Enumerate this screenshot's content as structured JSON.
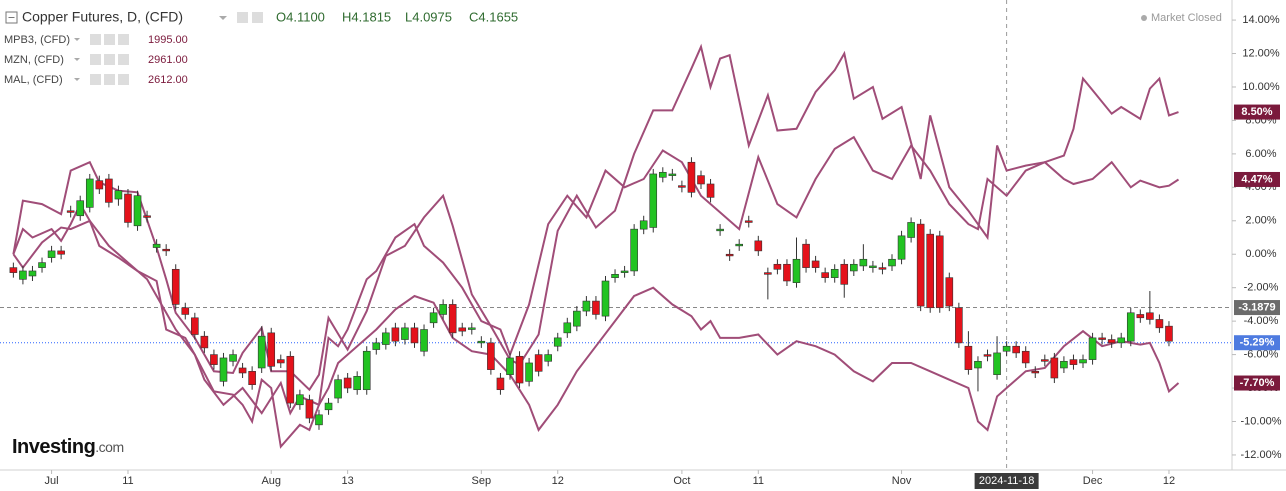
{
  "chart_data": {
    "type": "candlestick",
    "title": "Copper Futures, D, (CFD)",
    "ohlc": [
      "O4.1100",
      "H4.1815",
      "L4.0975",
      "C4.1655"
    ],
    "status": "Market Closed",
    "brand": [
      "Investing",
      ".com"
    ],
    "up_color": "#22c322",
    "down_color": "#e4121b",
    "x": [
      0,
      1,
      2,
      3,
      4,
      5,
      6,
      7,
      8,
      9,
      10,
      11,
      12,
      13,
      14,
      15,
      16,
      17,
      18,
      19,
      20,
      21,
      22,
      23,
      24,
      25,
      26,
      27,
      28,
      29,
      30,
      31,
      32,
      33,
      34,
      35,
      36,
      37,
      38,
      39,
      40,
      41,
      42,
      43,
      44,
      45,
      46,
      47,
      48,
      49,
      50,
      51,
      52,
      53,
      54,
      55,
      56,
      57,
      58,
      59,
      60,
      61,
      62,
      63,
      64,
      65,
      66,
      67,
      68,
      69,
      70,
      71,
      72,
      73,
      74,
      75,
      76,
      77,
      78,
      79,
      80,
      81,
      82,
      83,
      84,
      85,
      86,
      87,
      88,
      89,
      90,
      91,
      92,
      93,
      94,
      95,
      96,
      97,
      98,
      99,
      100,
      101,
      102,
      103,
      104,
      105,
      106,
      107,
      108,
      109,
      110,
      111,
      112,
      113,
      114,
      115,
      116,
      117,
      118,
      119,
      120,
      121
    ],
    "open": [
      -0.8,
      -1.5,
      -1.3,
      -0.8,
      -0.2,
      0.2,
      2.6,
      2.3,
      2.8,
      4.4,
      4.5,
      3.3,
      3.6,
      1.7,
      2.3,
      0.4,
      0.3,
      -0.9,
      -3.2,
      -3.8,
      -4.9,
      -6.0,
      -7.6,
      -6.4,
      -6.8,
      -7.0,
      -6.8,
      -4.7,
      -6.3,
      -6.1,
      -9.0,
      -8.7,
      -10.2,
      -9.3,
      -8.6,
      -7.4,
      -8.1,
      -8.1,
      -5.7,
      -5.4,
      -4.4,
      -5.1,
      -4.4,
      -5.8,
      -4.1,
      -3.6,
      -3.0,
      -4.4,
      -4.5,
      -5.3,
      -5.3,
      -7.4,
      -7.2,
      -6.1,
      -7.6,
      -6.0,
      -6.4,
      -5.5,
      -4.7,
      -4.3,
      -3.4,
      -2.8,
      -3.7,
      -1.4,
      -1.1,
      -1.0,
      1.5,
      1.6,
      4.6,
      4.7,
      4.1,
      5.5,
      4.7,
      4.2,
      1.4,
      0.0,
      0.5,
      2.0,
      0.8,
      -1.1,
      -0.6,
      -0.6,
      -1.7,
      0.6,
      -0.4,
      -1.1,
      -1.4,
      -0.6,
      -1.0,
      -0.7,
      -0.8,
      -0.8,
      -0.7,
      -0.3,
      1.0,
      1.8,
      1.2,
      1.1,
      -1.4,
      -3.2,
      -5.5,
      -6.8,
      -6.0,
      -7.2,
      -5.8,
      -5.5,
      -5.8,
      -7.0,
      -6.3,
      -6.2,
      -6.8,
      -6.3,
      -6.5,
      -6.3,
      -5.0,
      -5.1,
      -5.3,
      -5.2,
      -3.6,
      -3.5,
      -3.9,
      -4.3
    ],
    "high": [
      -0.5,
      -0.7,
      -0.7,
      -0.2,
      0.5,
      0.5,
      2.9,
      3.5,
      4.8,
      4.7,
      4.8,
      4.1,
      3.9,
      3.8,
      2.6,
      0.9,
      0.6,
      -0.6,
      -2.9,
      -3.5,
      -4.6,
      -5.7,
      -5.9,
      -5.7,
      -6.5,
      -6.7,
      -4.3,
      -4.4,
      -6.0,
      -5.8,
      -8.1,
      -8.4,
      -9.3,
      -8.6,
      -7.2,
      -7.1,
      -7.0,
      -5.5,
      -5.0,
      -4.4,
      -4.1,
      -4.1,
      -4.1,
      -4.2,
      -3.2,
      -2.7,
      -2.7,
      -4.1,
      -4.1,
      -4.9,
      -5.0,
      -7.1,
      -5.9,
      -5.8,
      -6.2,
      -5.7,
      -5.7,
      -4.7,
      -3.8,
      -3.1,
      -2.5,
      -2.5,
      -1.3,
      -0.9,
      -0.7,
      1.8,
      2.3,
      5.1,
      5.2,
      5.1,
      4.4,
      5.8,
      5.0,
      4.5,
      1.8,
      0.3,
      0.9,
      2.3,
      1.1,
      -0.8,
      -0.3,
      -0.3,
      1.0,
      0.9,
      -0.1,
      -0.8,
      -0.6,
      -0.3,
      -0.3,
      0.6,
      -0.4,
      -0.5,
      0.0,
      1.4,
      2.2,
      2.1,
      1.5,
      1.4,
      -1.1,
      -2.9,
      -4.6,
      -6.1,
      -5.7,
      -4.9,
      -5.2,
      -5.2,
      -5.5,
      -6.7,
      -6.0,
      -5.9,
      -6.1,
      -6.0,
      -6.0,
      -4.7,
      -4.7,
      -4.8,
      -4.7,
      -3.2,
      -3.3,
      -2.2,
      -3.6,
      -4.0
    ],
    "low": [
      -1.4,
      -1.8,
      -1.6,
      -1.1,
      -0.5,
      -0.3,
      2.2,
      2.0,
      2.5,
      3.6,
      2.8,
      2.9,
      1.6,
      1.4,
      1.9,
      0.1,
      -0.1,
      -3.3,
      -3.9,
      -5.1,
      -5.9,
      -6.9,
      -7.9,
      -6.7,
      -7.4,
      -8.1,
      -7.1,
      -7.0,
      -6.8,
      -9.2,
      -9.3,
      -10.1,
      -10.5,
      -9.6,
      -8.9,
      -8.3,
      -8.4,
      -8.4,
      -6.0,
      -5.7,
      -5.5,
      -5.4,
      -5.6,
      -6.1,
      -4.4,
      -3.9,
      -5.0,
      -4.9,
      -4.8,
      -5.6,
      -7.2,
      -8.4,
      -7.5,
      -8.0,
      -7.9,
      -7.3,
      -6.7,
      -5.8,
      -5.0,
      -4.6,
      -3.7,
      -3.9,
      -4.0,
      -1.7,
      -1.4,
      -1.3,
      1.2,
      1.3,
      4.3,
      4.4,
      3.7,
      3.4,
      3.9,
      3.1,
      1.1,
      -0.4,
      0.2,
      1.6,
      -0.1,
      -2.7,
      -1.2,
      -1.9,
      -2.0,
      -1.1,
      -1.1,
      -1.7,
      -1.7,
      -2.6,
      -1.3,
      -1.0,
      -1.1,
      -1.2,
      -1.0,
      -0.6,
      0.7,
      -3.4,
      -3.5,
      -3.5,
      -3.4,
      -5.6,
      -7.2,
      -8.2,
      -6.4,
      -7.5,
      -6.1,
      -6.2,
      -6.8,
      -7.4,
      -6.7,
      -7.7,
      -7.1,
      -6.9,
      -6.8,
      -6.6,
      -5.4,
      -5.6,
      -5.6,
      -5.5,
      -4.1,
      -4.2,
      -4.7,
      -5.5
    ],
    "close": [
      -1.1,
      -1.0,
      -1.0,
      -0.5,
      0.2,
      0.0,
      2.5,
      3.2,
      4.5,
      3.9,
      3.1,
      3.8,
      1.9,
      3.5,
      2.2,
      0.6,
      0.2,
      -3.0,
      -3.6,
      -4.8,
      -5.6,
      -6.6,
      -6.2,
      -6.0,
      -7.1,
      -7.8,
      -4.9,
      -6.7,
      -6.5,
      -8.9,
      -8.4,
      -9.8,
      -9.6,
      -8.9,
      -7.5,
      -8.0,
      -7.3,
      -5.8,
      -5.3,
      -4.7,
      -5.2,
      -4.4,
      -5.3,
      -4.5,
      -3.5,
      -3.0,
      -4.7,
      -4.6,
      -4.4,
      -5.2,
      -6.9,
      -8.1,
      -6.2,
      -7.7,
      -6.5,
      -7.0,
      -6.0,
      -5.0,
      -4.1,
      -3.4,
      -2.8,
      -3.6,
      -1.6,
      -1.2,
      -1.0,
      1.5,
      2.0,
      4.8,
      4.9,
      4.8,
      4.0,
      3.7,
      4.2,
      3.4,
      1.5,
      -0.1,
      0.6,
      1.9,
      0.2,
      -1.2,
      -0.9,
      -1.6,
      -0.3,
      -0.8,
      -0.8,
      -1.4,
      -0.9,
      -1.8,
      -0.6,
      -0.3,
      -0.7,
      -0.9,
      -0.3,
      1.1,
      1.9,
      -3.1,
      -3.2,
      -3.2,
      -3.1,
      -5.3,
      -6.9,
      -6.4,
      -6.1,
      -5.9,
      -5.5,
      -5.9,
      -6.5,
      -7.1,
      -6.4,
      -7.4,
      -6.4,
      -6.6,
      -6.3,
      -5.0,
      -5.1,
      -5.3,
      -5.0,
      -3.5,
      -3.8,
      -3.9,
      -4.4,
      -5.2
    ],
    "compare": [
      {
        "name": "MPB3, (CFD)",
        "price": "1995.00",
        "color": "#a04d78",
        "x": [
          0,
          1,
          3,
          5,
          6,
          8,
          9,
          11,
          13,
          15,
          16,
          17,
          19,
          21,
          23,
          24,
          26,
          27,
          29,
          31,
          32,
          33,
          35,
          37,
          39,
          41,
          43,
          45,
          46,
          48,
          50,
          52,
          53,
          55,
          57,
          59,
          61,
          63,
          65,
          67,
          69,
          71,
          72,
          73,
          74,
          75,
          76,
          77,
          79,
          80,
          82,
          84,
          86,
          87,
          88,
          90,
          91,
          93,
          95,
          96,
          98,
          100,
          102,
          103,
          104,
          106,
          108,
          110,
          111,
          112,
          113,
          115,
          116,
          118,
          119,
          120,
          121,
          122
        ],
        "values": [
          0,
          3.2,
          3.0,
          2.4,
          5.0,
          5.5,
          4.3,
          3.8,
          3.7,
          0.4,
          -1.5,
          -3.5,
          -5.0,
          -7.0,
          -7.1,
          -5.9,
          -4.4,
          -7.0,
          -7.0,
          -8.1,
          -7.2,
          -3.8,
          -5.7,
          -3.4,
          -0.1,
          0.5,
          2.2,
          3.5,
          1.7,
          -2.4,
          -4.3,
          -6.3,
          -6.6,
          -4.8,
          1.4,
          3.5,
          1.6,
          2.6,
          6.0,
          8.6,
          8.6,
          11.1,
          12.4,
          10.0,
          11.7,
          11.9,
          9.2,
          6.5,
          9.5,
          7.4,
          7.5,
          9.7,
          11.0,
          12.0,
          9.3,
          10.0,
          8.1,
          8.8,
          4.5,
          8.3,
          4.0,
          2.6,
          1.0,
          6.5,
          5.0,
          5.3,
          5.5,
          5.9,
          7.5,
          10.5,
          9.8,
          8.4,
          8.8,
          8.1,
          9.9,
          10.5,
          8.3,
          8.5
        ],
        "badge": {
          "value": 8.5,
          "label": "8.50%"
        }
      },
      {
        "name": "MZN, (CFD)",
        "price": "2961.00",
        "color": "#a04d78",
        "x": [
          0,
          1,
          2,
          4,
          5,
          6,
          7,
          8,
          9,
          11,
          13,
          15,
          16,
          18,
          19,
          21,
          23,
          24,
          25,
          26,
          27,
          28,
          30,
          31,
          32,
          33,
          34,
          35,
          37,
          38,
          40,
          42,
          43,
          45,
          47,
          49,
          51,
          52,
          54,
          56,
          58,
          60,
          62,
          64,
          66,
          68,
          70,
          72,
          74,
          76,
          78,
          80,
          82,
          84,
          86,
          88,
          90,
          92,
          94,
          96,
          98,
          100,
          101,
          102,
          104,
          106,
          108,
          110,
          111,
          113,
          115,
          117,
          118,
          120,
          121,
          122
        ],
        "values": [
          0,
          1.5,
          1.0,
          1.5,
          0.8,
          1.8,
          3.0,
          2.0,
          0.5,
          -0.2,
          -1.0,
          -1.6,
          -4.5,
          -5.0,
          -6.0,
          -8.2,
          -8.4,
          -9.0,
          -10.0,
          -7.5,
          -8.0,
          -11.5,
          -10.2,
          -10.5,
          -9.0,
          -5.0,
          -5.5,
          -4.5,
          -1.5,
          -1.0,
          1.0,
          1.8,
          0.5,
          -0.5,
          -2.0,
          -4.0,
          -4.5,
          -6.0,
          -3.0,
          1.8,
          3.5,
          2.2,
          5.0,
          4.0,
          4.5,
          6.2,
          5.5,
          3.5,
          2.5,
          1.5,
          5.8,
          3.0,
          2.2,
          4.5,
          6.3,
          7.0,
          5.0,
          4.5,
          6.5,
          5.0,
          3.0,
          1.8,
          1.5,
          4.5,
          3.5,
          5.0,
          5.5,
          4.5,
          4.2,
          4.5,
          5.5,
          4.0,
          4.4,
          4.0,
          4.1,
          4.47
        ],
        "badge": {
          "value": 4.47,
          "label": "4.47%"
        }
      },
      {
        "name": "MAL, (CFD)",
        "price": "2612.00",
        "color": "#a04d78",
        "x": [
          0,
          1,
          3,
          5,
          6,
          8,
          10,
          12,
          14,
          15,
          16,
          17,
          19,
          20,
          22,
          24,
          26,
          28,
          29,
          30,
          32,
          33,
          34,
          36,
          38,
          40,
          42,
          44,
          46,
          48,
          50,
          52,
          54,
          55,
          57,
          59,
          61,
          63,
          65,
          67,
          69,
          71,
          72,
          73,
          74,
          76,
          78,
          80,
          82,
          84,
          86,
          88,
          90,
          92,
          94,
          96,
          98,
          100,
          101,
          102,
          103,
          104,
          106,
          108,
          110,
          112,
          114,
          116,
          118,
          119,
          120,
          121,
          122
        ],
        "values": [
          0,
          -0.8,
          0.7,
          1.6,
          1.5,
          2.0,
          0.5,
          -0.5,
          -1.5,
          -2.5,
          -3.5,
          -4.5,
          -6.0,
          -7.5,
          -9.0,
          -8.0,
          -9.5,
          -7.7,
          -9.5,
          -8.5,
          -9.0,
          -8.0,
          -6.5,
          -5.5,
          -4.5,
          -3.3,
          -2.5,
          -2.9,
          -5.0,
          -5.8,
          -6.0,
          -7.2,
          -9.0,
          -10.5,
          -9.0,
          -7.0,
          -5.5,
          -4.0,
          -2.5,
          -2.0,
          -3.0,
          -3.7,
          -4.5,
          -4.0,
          -5.0,
          -5.0,
          -4.8,
          -6.0,
          -5.2,
          -5.5,
          -6.0,
          -7.0,
          -7.6,
          -6.5,
          -6.5,
          -7.0,
          -7.5,
          -8.0,
          -10.0,
          -10.5,
          -8.5,
          -8.0,
          -7.0,
          -6.8,
          -5.5,
          -4.6,
          -5.5,
          -5.2,
          -5.4,
          -5.3,
          -6.5,
          -8.2,
          -7.7
        ],
        "badge": {
          "value": -7.7,
          "label": "-7.70%"
        }
      }
    ],
    "badge_color": "#7b1a3c",
    "price_line": {
      "value": -3.1879,
      "label": "-3.1879"
    },
    "crosshair": {
      "x": {
        "value": 104,
        "label": "2024-11-18"
      },
      "y": {
        "value": -5.29,
        "label": "-5.29%"
      }
    },
    "xlim": [
      -1.4,
      127.6
    ],
    "xticks": [
      {
        "value": 4,
        "label": "Jul"
      },
      {
        "value": 12,
        "label": "11"
      },
      {
        "value": 27,
        "label": "Aug"
      },
      {
        "value": 35,
        "label": "13"
      },
      {
        "value": 49,
        "label": "Sep"
      },
      {
        "value": 57,
        "label": "12"
      },
      {
        "value": 70,
        "label": "Oct"
      },
      {
        "value": 78,
        "label": "11"
      },
      {
        "value": 93,
        "label": "Nov"
      },
      {
        "value": 113,
        "label": "Dec"
      },
      {
        "value": 121,
        "label": "12"
      }
    ],
    "ylim": [
      -12.9,
      15.2
    ],
    "yticks": [
      {
        "value": 14,
        "label": "14.00%"
      },
      {
        "value": 12,
        "label": "12.00%"
      },
      {
        "value": 10,
        "label": "10.00%"
      },
      {
        "value": 8,
        "label": "8.00%"
      },
      {
        "value": 6,
        "label": "6.00%"
      },
      {
        "value": 4,
        "label": "4.00%"
      },
      {
        "value": 2,
        "label": "2.00%"
      },
      {
        "value": 0,
        "label": "0.00%"
      },
      {
        "value": -2,
        "label": "-2.00%"
      },
      {
        "value": -4,
        "label": "-4.00%"
      },
      {
        "value": -6,
        "label": "-6.00%"
      },
      {
        "value": -8,
        "label": "-8.00%"
      },
      {
        "value": -10,
        "label": "-10.00%"
      },
      {
        "value": -12,
        "label": "-12.00%"
      }
    ]
  }
}
